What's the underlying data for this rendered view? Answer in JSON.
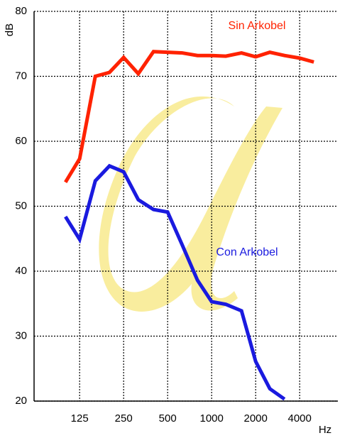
{
  "chart_data": {
    "type": "line",
    "x": [
      100,
      125,
      160,
      200,
      250,
      315,
      400,
      500,
      630,
      800,
      1000,
      1250,
      1600,
      2000,
      2500,
      3150,
      4000,
      5000
    ],
    "series": [
      {
        "name": "Sin Arkobel",
        "color": "#ff2200",
        "values": [
          53.7,
          57.3,
          70.0,
          70.6,
          72.9,
          70.4,
          73.8,
          73.7,
          73.6,
          73.2,
          73.2,
          73.1,
          73.6,
          73.0,
          73.7,
          73.2,
          72.8,
          72.2
        ]
      },
      {
        "name": "Con Arkobel",
        "color": "#1a1adf",
        "values": [
          48.4,
          44.9,
          53.9,
          56.2,
          55.3,
          51.0,
          49.5,
          49.1,
          44.0,
          38.6,
          35.3,
          34.9,
          33.9,
          26.1,
          21.9,
          20.3,
          null,
          null
        ]
      }
    ],
    "y_label": "dB",
    "x_label": "Hz",
    "xscale": "log",
    "xlim": [
      61,
      7300
    ],
    "xticks": [
      125,
      250,
      500,
      1000,
      2000,
      4000
    ],
    "ylim": [
      20,
      80
    ],
    "yticks": [
      20,
      30,
      40,
      50,
      60,
      70,
      80
    ],
    "grid": true
  }
}
